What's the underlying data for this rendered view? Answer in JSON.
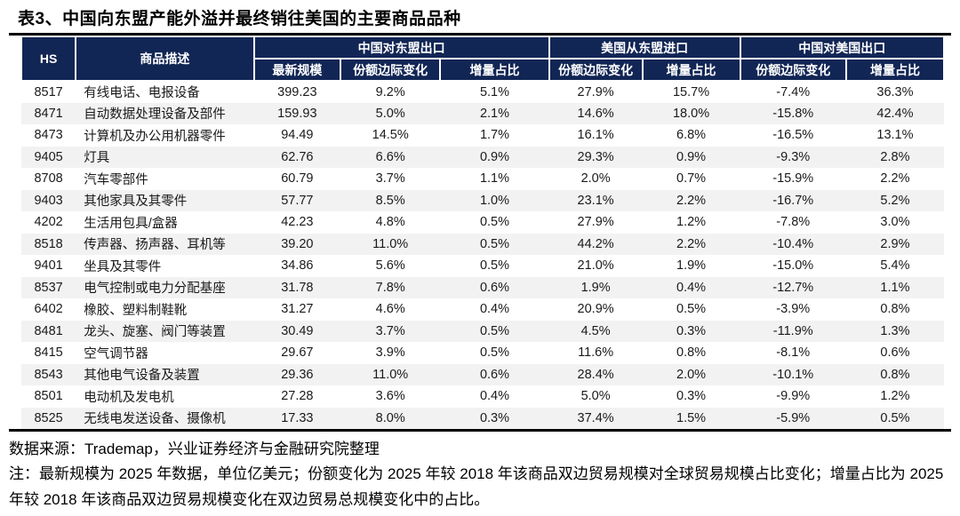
{
  "title": "表3、中国向东盟产能外溢并最终销往美国的主要商品品种",
  "colors": {
    "header_bg": "#122655",
    "stripe": "#f2f2f2",
    "rule": "#000000",
    "header_text": "#ffffff",
    "body_text": "#1a1a1a"
  },
  "table": {
    "header": {
      "hs": "HS",
      "desc": "商品描述",
      "group1": "中国对东盟出口",
      "group2": "美国从东盟进口",
      "group3": "中国对美国出口",
      "sub1": "最新规模",
      "sub2": "份额边际变化",
      "sub3": "增量占比",
      "sub4": "份额边际变化",
      "sub5": "增量占比",
      "sub6": "份额边际变化",
      "sub7": "增量占比"
    },
    "rows": [
      [
        "8517",
        "有线电话、电报设备",
        "399.23",
        "9.2%",
        "5.1%",
        "27.9%",
        "15.7%",
        "-7.4%",
        "36.3%"
      ],
      [
        "8471",
        "自动数据处理设备及部件",
        "159.93",
        "5.0%",
        "2.1%",
        "14.6%",
        "18.0%",
        "-15.8%",
        "42.4%"
      ],
      [
        "8473",
        "计算机及办公用机器零件",
        "94.49",
        "14.5%",
        "1.7%",
        "16.1%",
        "6.8%",
        "-16.5%",
        "13.1%"
      ],
      [
        "9405",
        "灯具",
        "62.76",
        "6.6%",
        "0.9%",
        "29.3%",
        "0.9%",
        "-9.3%",
        "2.8%"
      ],
      [
        "8708",
        "汽车零部件",
        "60.79",
        "3.7%",
        "1.1%",
        "2.0%",
        "0.7%",
        "-15.9%",
        "2.2%"
      ],
      [
        "9403",
        "其他家具及其零件",
        "57.77",
        "8.5%",
        "1.0%",
        "23.1%",
        "2.2%",
        "-16.7%",
        "5.2%"
      ],
      [
        "4202",
        "生活用包具/盒器",
        "42.23",
        "4.8%",
        "0.5%",
        "27.9%",
        "1.2%",
        "-7.8%",
        "3.0%"
      ],
      [
        "8518",
        "传声器、扬声器、耳机等",
        "39.20",
        "11.0%",
        "0.5%",
        "44.2%",
        "2.2%",
        "-10.4%",
        "2.9%"
      ],
      [
        "9401",
        "坐具及其零件",
        "34.86",
        "5.6%",
        "0.5%",
        "21.0%",
        "1.9%",
        "-15.0%",
        "5.4%"
      ],
      [
        "8537",
        "电气控制或电力分配基座",
        "31.78",
        "7.8%",
        "0.6%",
        "1.9%",
        "0.4%",
        "-12.7%",
        "1.1%"
      ],
      [
        "6402",
        "橡胶、塑料制鞋靴",
        "31.27",
        "4.6%",
        "0.4%",
        "20.9%",
        "0.5%",
        "-3.9%",
        "0.8%"
      ],
      [
        "8481",
        "龙头、旋塞、阀门等装置",
        "30.49",
        "3.7%",
        "0.5%",
        "4.5%",
        "0.3%",
        "-11.9%",
        "1.3%"
      ],
      [
        "8415",
        "空气调节器",
        "29.67",
        "3.9%",
        "0.5%",
        "11.6%",
        "0.8%",
        "-8.1%",
        "0.6%"
      ],
      [
        "8543",
        "其他电气设备及装置",
        "29.36",
        "11.0%",
        "0.6%",
        "28.4%",
        "2.0%",
        "-10.1%",
        "0.8%"
      ],
      [
        "8501",
        "电动机及发电机",
        "27.28",
        "3.6%",
        "0.4%",
        "5.0%",
        "0.3%",
        "-9.9%",
        "1.2%"
      ],
      [
        "8525",
        "无线电发送设备、摄像机",
        "17.33",
        "8.0%",
        "0.3%",
        "37.4%",
        "1.5%",
        "-5.9%",
        "0.5%"
      ]
    ]
  },
  "footer": {
    "source": "数据来源：Trademap，兴业证券经济与金融研究院整理",
    "note": "注：最新规模为 2025 年数据，单位亿美元；份额变化为 2025 年较 2018 年该商品双边贸易规模对全球贸易规模占比变化；增量占比为 2025 年较 2018 年该商品双边贸易规模变化在双边贸易总规模变化中的占比。"
  }
}
